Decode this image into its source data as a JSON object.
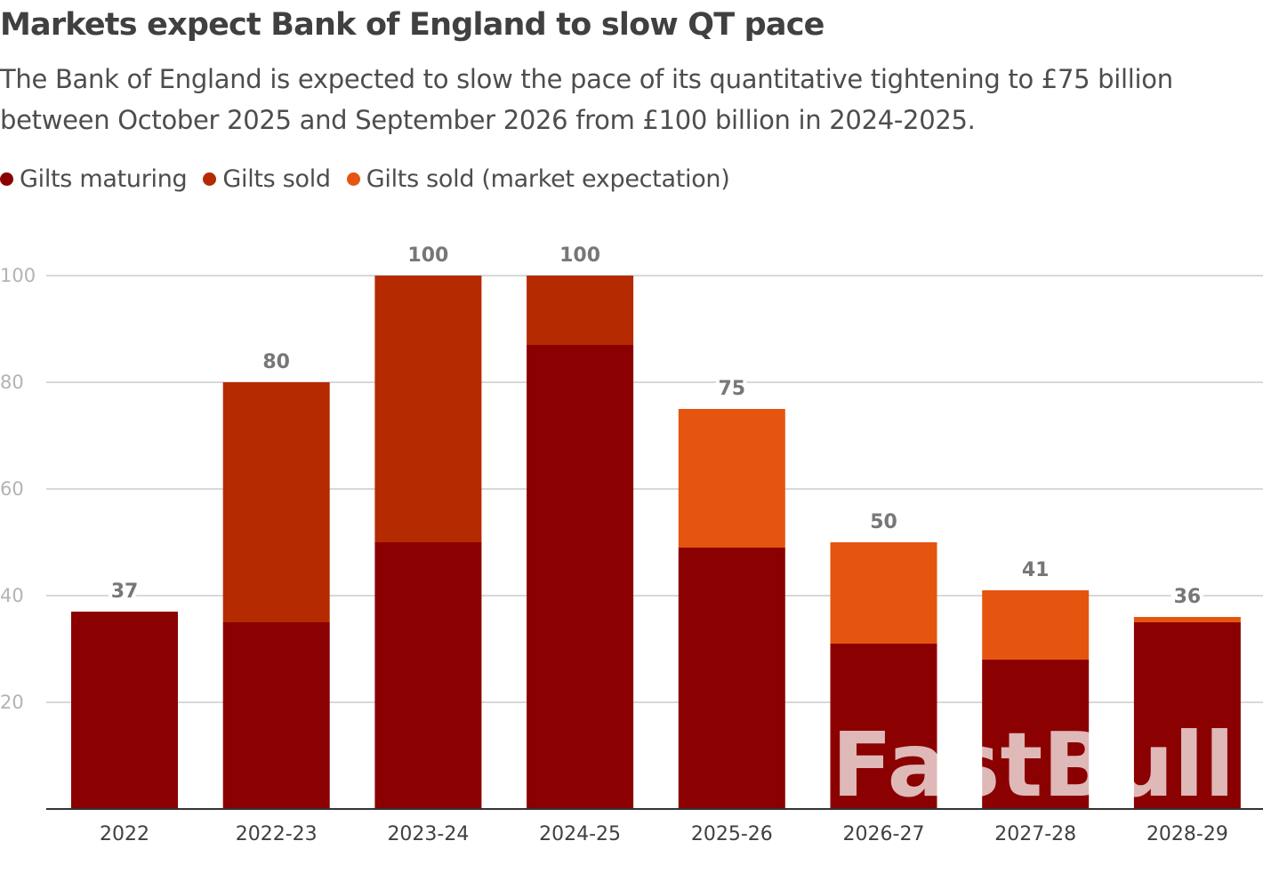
{
  "title": "Markets expect Bank of England to slow QT pace",
  "subtitle": "The Bank of England is expected to slow the pace of its quantitative tightening to £75 billion between October 2025 and September 2026 from £100 billion in 2024-2025.",
  "watermark": "FastBull",
  "chart_data": {
    "type": "bar",
    "stacked": true,
    "categories": [
      "2022",
      "2022-23",
      "2023-24",
      "2024-25",
      "2025-26",
      "2026-27",
      "2027-28",
      "2028-29"
    ],
    "series": [
      {
        "name": "Gilts maturing",
        "color": "#8b0000",
        "values": [
          37,
          35,
          50,
          87,
          49,
          31,
          28,
          35
        ]
      },
      {
        "name": "Gilts sold",
        "color": "#b52a00",
        "values": [
          0,
          45,
          50,
          13,
          0,
          0,
          0,
          0
        ]
      },
      {
        "name": "Gilts sold (market expectation)",
        "color": "#e5550f",
        "values": [
          0,
          0,
          0,
          0,
          26,
          19,
          13,
          1
        ]
      }
    ],
    "totals": [
      "37",
      "80",
      "100",
      "100",
      "75",
      "50",
      "41",
      "36"
    ],
    "yticks": [
      "20",
      "40",
      "60",
      "80",
      "100"
    ],
    "ylim": [
      0,
      100
    ],
    "grid": true,
    "legend": "top-left"
  }
}
